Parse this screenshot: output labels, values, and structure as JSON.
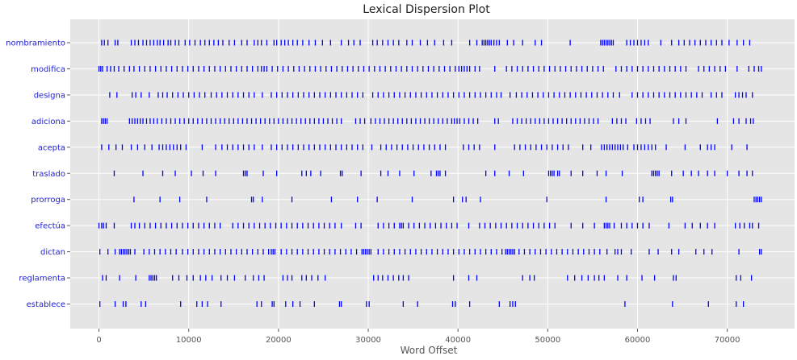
{
  "chart_data": {
    "type": "dispersion",
    "title": "Lexical Dispersion Plot",
    "xlabel": "Word Offset",
    "ylabel": "",
    "xlim": [
      -3200,
      77500
    ],
    "xticks": [
      0,
      10000,
      20000,
      30000,
      40000,
      50000,
      60000,
      70000
    ],
    "grid": true,
    "mark_color": "#0000ff",
    "background": "#e5e5e5",
    "words": [
      {
        "word": "nombramiento",
        "offsets": [
          300,
          600,
          1000,
          1800,
          2100,
          3600,
          4000,
          4400,
          4900,
          5300,
          5700,
          6100,
          6500,
          6800,
          7200,
          7700,
          8000,
          8500,
          8900,
          9600,
          10100,
          10700,
          11300,
          11800,
          12300,
          12800,
          13300,
          13800,
          14500,
          15100,
          15900,
          16500,
          17300,
          17700,
          18100,
          18700,
          19500,
          19800,
          20300,
          20700,
          21100,
          21600,
          22100,
          22700,
          23400,
          24100,
          24900,
          25800,
          27000,
          27800,
          28400,
          29100,
          30500,
          31000,
          31600,
          32200,
          32800,
          33400,
          34300,
          34900,
          35800,
          36600,
          37400,
          38400,
          39300,
          41300,
          42100,
          42700,
          42900,
          43100,
          43300,
          43500,
          43700,
          44000,
          44300,
          44600,
          45500,
          46200,
          47200,
          48600,
          49300,
          52500,
          55900,
          56100,
          56300,
          56500,
          56700,
          56900,
          57100,
          57300,
          58800,
          59200,
          59600,
          60000,
          60400,
          60800,
          61200,
          62600,
          63800,
          64600,
          65200,
          65800,
          66400,
          67000,
          67600,
          68200,
          68800,
          69400,
          70200,
          71100,
          71800,
          72500
        ]
      },
      {
        "word": "modifica",
        "offsets": [
          0,
          200,
          400,
          900,
          1300,
          1700,
          2200,
          2800,
          3400,
          3900,
          4500,
          5100,
          5700,
          6300,
          6900,
          7500,
          8100,
          8700,
          9300,
          9900,
          10500,
          11100,
          11700,
          12300,
          12900,
          13500,
          14100,
          14700,
          15300,
          15900,
          16500,
          17100,
          17700,
          18100,
          18400,
          18700,
          19300,
          19900,
          20500,
          21100,
          21700,
          22300,
          22900,
          23500,
          24100,
          24700,
          25300,
          25900,
          26500,
          27100,
          27700,
          28300,
          28900,
          29500,
          30100,
          30700,
          31300,
          31900,
          32500,
          33100,
          33700,
          34300,
          34900,
          35500,
          36100,
          36700,
          37300,
          37900,
          38500,
          39100,
          39700,
          40100,
          40400,
          40700,
          41000,
          41300,
          41900,
          42400,
          44100,
          45400,
          46000,
          46600,
          47200,
          47800,
          48400,
          49000,
          49600,
          50200,
          50800,
          51400,
          52000,
          52600,
          53200,
          53800,
          54400,
          55000,
          55600,
          56200,
          57600,
          58200,
          58800,
          59400,
          60000,
          60600,
          61200,
          61800,
          62400,
          63000,
          63600,
          64200,
          64800,
          65400,
          66800,
          67400,
          68000,
          68600,
          69200,
          69800,
          71100,
          72400,
          73000,
          73500,
          73800
        ]
      },
      {
        "word": "designa",
        "offsets": [
          1200,
          2000,
          3700,
          4100,
          4700,
          5600,
          6600,
          7100,
          7600,
          8200,
          8800,
          9400,
          10000,
          10600,
          11200,
          11800,
          12500,
          13100,
          13700,
          14300,
          14900,
          15500,
          16100,
          16700,
          17300,
          18200,
          19200,
          19800,
          20400,
          21000,
          21600,
          22200,
          22800,
          23400,
          24000,
          24600,
          25200,
          25800,
          26400,
          27000,
          27600,
          28200,
          28800,
          29400,
          30500,
          31100,
          31700,
          32300,
          32900,
          33500,
          34100,
          34700,
          35300,
          35900,
          36500,
          37100,
          37700,
          38300,
          38900,
          39500,
          40100,
          40700,
          41300,
          41900,
          42500,
          43100,
          43700,
          44300,
          44800,
          45800,
          46500,
          47100,
          47700,
          48300,
          48900,
          49500,
          50100,
          50700,
          51300,
          51900,
          52500,
          53100,
          53700,
          54300,
          54900,
          55500,
          56100,
          56700,
          57300,
          58000,
          59400,
          60000,
          60600,
          61200,
          61800,
          62400,
          63000,
          63600,
          64200,
          64800,
          65400,
          66000,
          66600,
          67200,
          68200,
          68800,
          69400,
          70900,
          71300,
          71700,
          72100,
          72800
        ]
      },
      {
        "word": "adiciona",
        "offsets": [
          300,
          500,
          700,
          900,
          3400,
          3700,
          4000,
          4300,
          4600,
          4900,
          5300,
          5700,
          6100,
          6500,
          7000,
          7500,
          8000,
          8500,
          9000,
          9500,
          10000,
          10500,
          11000,
          11500,
          12000,
          12500,
          13000,
          13500,
          14000,
          14500,
          15000,
          15500,
          16000,
          16500,
          17000,
          17500,
          18000,
          18500,
          19000,
          19500,
          20000,
          20500,
          21000,
          21500,
          22000,
          22500,
          23000,
          23500,
          24000,
          24500,
          25000,
          25500,
          26000,
          26500,
          27000,
          28600,
          29100,
          29600,
          30300,
          30800,
          31300,
          31800,
          32300,
          32800,
          33300,
          33800,
          34300,
          34800,
          35300,
          35800,
          36300,
          36800,
          37300,
          37800,
          38300,
          38800,
          39300,
          39600,
          39900,
          40200,
          40700,
          41200,
          41700,
          42200,
          44100,
          44500,
          46100,
          46600,
          47100,
          47600,
          48100,
          48600,
          49100,
          49600,
          50100,
          50600,
          51100,
          51600,
          52100,
          52600,
          53100,
          53600,
          54100,
          54600,
          55100,
          55600,
          57200,
          57700,
          58200,
          58700,
          59900,
          60400,
          60900,
          61400,
          64000,
          64600,
          65400,
          68900,
          70700,
          71300,
          72100,
          72600,
          72900
        ]
      },
      {
        "word": "acepta",
        "offsets": [
          300,
          1100,
          1900,
          2600,
          3600,
          4300,
          5100,
          5900,
          6700,
          7100,
          7500,
          7900,
          8300,
          8700,
          9100,
          9700,
          11500,
          13000,
          13700,
          14300,
          14900,
          15500,
          16100,
          16700,
          17300,
          18200,
          19200,
          19800,
          20400,
          21000,
          21600,
          22200,
          22800,
          23400,
          24000,
          24600,
          25200,
          25800,
          26400,
          27000,
          27600,
          28200,
          28800,
          29400,
          30400,
          31400,
          32000,
          32600,
          33200,
          33800,
          34400,
          35000,
          35600,
          36200,
          36800,
          37400,
          38000,
          38600,
          40600,
          41200,
          41800,
          42400,
          44100,
          46300,
          46900,
          47500,
          48100,
          48700,
          49300,
          49900,
          50500,
          51100,
          51700,
          52300,
          53900,
          54800,
          56000,
          56300,
          56600,
          56900,
          57200,
          57500,
          57800,
          58100,
          58400,
          58900,
          59600,
          60000,
          60400,
          60800,
          61200,
          61600,
          62000,
          63200,
          65300,
          67000,
          67800,
          68200,
          68600,
          70500,
          72200
        ]
      },
      {
        "word": "traslado",
        "offsets": [
          1700,
          4900,
          7100,
          8500,
          10300,
          11600,
          13000,
          16100,
          16300,
          16500,
          18300,
          19800,
          22600,
          23100,
          23600,
          24700,
          26900,
          27100,
          29200,
          31400,
          32200,
          33500,
          35100,
          37000,
          37600,
          37800,
          38000,
          38600,
          43100,
          44100,
          45700,
          47300,
          50100,
          50300,
          50500,
          50700,
          51100,
          51300,
          52600,
          53900,
          55500,
          56500,
          58300,
          61600,
          61800,
          62000,
          62200,
          62400,
          63800,
          65100,
          66000,
          66800,
          67800,
          68600,
          70000,
          71300,
          72200,
          72800
        ]
      },
      {
        "word": "prorroga",
        "offsets": [
          3900,
          6800,
          9000,
          12000,
          17000,
          17200,
          18200,
          21500,
          25900,
          28800,
          31000,
          34900,
          39500,
          40500,
          40900,
          42500,
          49900,
          56500,
          60200,
          60600,
          63700,
          63900,
          73000,
          73200,
          73400,
          73600,
          73800
        ]
      },
      {
        "word": "efectúa",
        "offsets": [
          0,
          300,
          500,
          800,
          1700,
          3600,
          4000,
          4500,
          5100,
          5700,
          6300,
          6900,
          7500,
          8100,
          8700,
          9300,
          9900,
          10500,
          11100,
          11700,
          12300,
          12900,
          13500,
          14900,
          15500,
          16100,
          16700,
          17300,
          17900,
          18500,
          19100,
          19700,
          20300,
          20900,
          21500,
          22100,
          22700,
          23300,
          23900,
          24500,
          25100,
          25700,
          26300,
          27000,
          28600,
          29200,
          31100,
          31700,
          32300,
          32900,
          33500,
          33700,
          33900,
          34500,
          35100,
          35700,
          36300,
          36900,
          37500,
          38100,
          38700,
          39300,
          39900,
          41200,
          42400,
          43000,
          43600,
          44200,
          44800,
          45400,
          46000,
          46600,
          47200,
          47800,
          48400,
          49000,
          49600,
          50200,
          50800,
          52600,
          53900,
          55200,
          56300,
          56500,
          56700,
          56900,
          57400,
          58200,
          58800,
          59400,
          60000,
          60600,
          61300,
          63500,
          65300,
          66100,
          67000,
          67800,
          68600,
          70900,
          71400,
          71900,
          72500,
          72800,
          73500
        ]
      },
      {
        "word": "dictan",
        "offsets": [
          100,
          1000,
          1800,
          2300,
          2500,
          2700,
          2900,
          3100,
          3300,
          3500,
          4000,
          5000,
          5600,
          6200,
          6800,
          7400,
          8000,
          8600,
          9300,
          9900,
          10500,
          11100,
          11700,
          12300,
          12900,
          13500,
          14100,
          14700,
          15300,
          15900,
          16500,
          17100,
          17700,
          18300,
          18900,
          19200,
          19400,
          19600,
          20300,
          20900,
          21500,
          22100,
          22700,
          23300,
          23900,
          24500,
          25100,
          25700,
          26300,
          26900,
          27500,
          28100,
          28700,
          29300,
          29500,
          29700,
          29900,
          30100,
          30300,
          31100,
          31700,
          32300,
          32900,
          33500,
          34100,
          34700,
          35300,
          35900,
          36500,
          37100,
          37700,
          38300,
          38900,
          39500,
          40100,
          40700,
          41300,
          41900,
          42500,
          43100,
          43700,
          44300,
          44900,
          45300,
          45500,
          45700,
          45900,
          46100,
          46300,
          46800,
          47400,
          48000,
          48600,
          49200,
          49800,
          50400,
          51000,
          51600,
          52200,
          52800,
          53400,
          54000,
          54600,
          55200,
          55800,
          56600,
          57500,
          57800,
          58200,
          59300,
          61300,
          62300,
          63800,
          64600,
          66500,
          67400,
          68300,
          71300,
          73600,
          73800
        ]
      },
      {
        "word": "reglamenta",
        "offsets": [
          400,
          800,
          2300,
          4100,
          5600,
          5800,
          6000,
          6200,
          6400,
          8200,
          8900,
          9800,
          10500,
          11300,
          11900,
          12600,
          13600,
          14300,
          15100,
          16300,
          17200,
          17800,
          18400,
          20500,
          21000,
          21500,
          22600,
          23100,
          23700,
          24400,
          25200,
          30600,
          31100,
          31600,
          32200,
          32800,
          33400,
          33900,
          34500,
          39500,
          41200,
          42100,
          47200,
          48000,
          48500,
          52200,
          53000,
          53800,
          54500,
          55200,
          55700,
          56300,
          57800,
          58800,
          60500,
          61900,
          64000,
          64300,
          71000,
          71500,
          72700
        ]
      },
      {
        "word": "establece",
        "offsets": [
          100,
          1800,
          2700,
          3000,
          4700,
          5200,
          9100,
          10900,
          11500,
          12100,
          13600,
          17600,
          18100,
          19300,
          19500,
          20800,
          21600,
          22400,
          24000,
          26800,
          27000,
          29800,
          30100,
          33900,
          35500,
          39400,
          39700,
          41300,
          44600,
          45800,
          46100,
          46400,
          58600,
          63900,
          67900,
          71000,
          71800
        ]
      }
    ]
  }
}
